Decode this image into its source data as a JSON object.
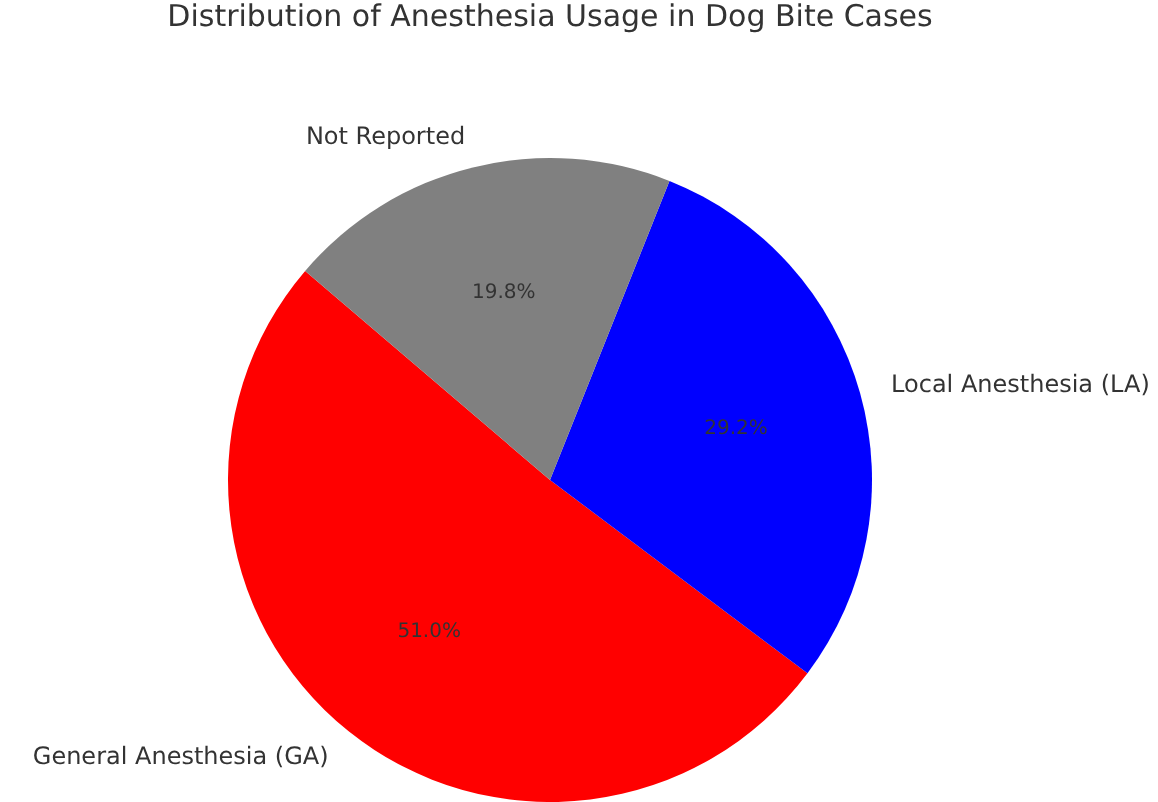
{
  "chart_data": {
    "type": "pie",
    "title": "Distribution of Anesthesia Usage in Dog Bite Cases",
    "categories": [
      "General Anesthesia (GA)",
      "Local Anesthesia (LA)",
      "Not Reported"
    ],
    "values": [
      51.0,
      29.2,
      19.8
    ],
    "value_labels": [
      "51.0%",
      "29.2%",
      "19.8%"
    ],
    "colors": [
      "#ff0000",
      "#0000ff",
      "#808080"
    ]
  }
}
